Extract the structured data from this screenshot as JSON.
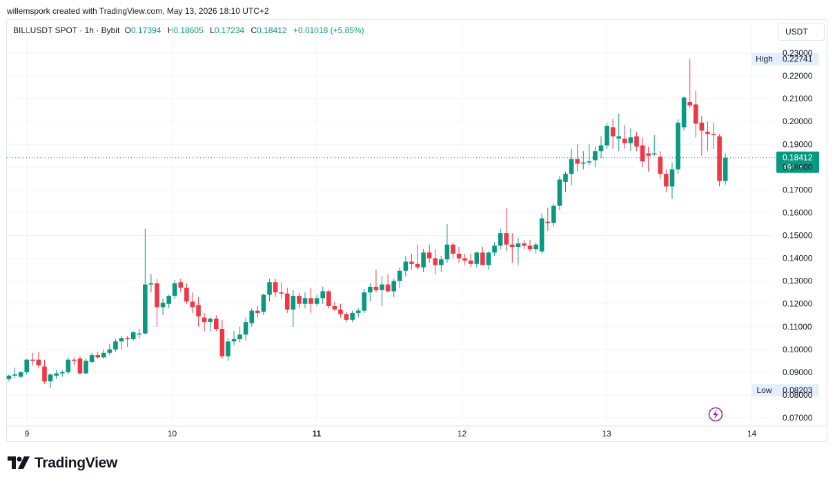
{
  "header": {
    "attribution": "willemspork created with TradingView.com, May 13, 2026 18:10 UTC+2"
  },
  "legend": {
    "symbol": "BILLUSDT SPOT · 1h · Bybit",
    "open_label": "O",
    "open": "0.17394",
    "high_label": "H",
    "high": "0.18605",
    "low_label": "L",
    "low": "0.17234",
    "close_label": "C",
    "close": "0.18412",
    "change": "+0.01018 (+5.85%)"
  },
  "currency_button": {
    "label": "USDT"
  },
  "brand": {
    "name": "TradingView"
  },
  "icons": {
    "logo": "tradingview-logo-icon",
    "alert": "lightning-icon"
  },
  "colors": {
    "up": "#089981",
    "down": "#f23645",
    "text": "#131722",
    "grid": "#f0f3fa",
    "border": "#e0e3eb",
    "label_bg": "#e3effd"
  },
  "chart_data": {
    "type": "candlestick",
    "ylim": [
      0.0665,
      0.2345
    ],
    "y_ticks": [
      "0.07000",
      "0.08000",
      "0.09000",
      "0.10000",
      "0.11000",
      "0.12000",
      "0.13000",
      "0.14000",
      "0.15000",
      "0.16000",
      "0.17000",
      "0.18000",
      "0.19000",
      "0.20000",
      "0.21000",
      "0.22000",
      "0.23000"
    ],
    "x_tick_labels": [
      "9",
      "10",
      "11",
      "12",
      "13",
      "14"
    ],
    "x_tick_bold": [
      "11"
    ],
    "high_marker": {
      "label": "High",
      "value": "0.22741"
    },
    "low_marker": {
      "label": "Low",
      "value": "0.08203"
    },
    "last_price": {
      "value": "0.18412",
      "countdown": "49:36"
    },
    "grid": true,
    "candles": [
      [
        0.087,
        0.089,
        0.086,
        0.0885
      ],
      [
        0.0885,
        0.092,
        0.0875,
        0.089
      ],
      [
        0.088,
        0.0905,
        0.0875,
        0.09
      ],
      [
        0.09,
        0.096,
        0.089,
        0.0955
      ],
      [
        0.0955,
        0.0985,
        0.093,
        0.095
      ],
      [
        0.0955,
        0.099,
        0.092,
        0.093
      ],
      [
        0.0925,
        0.0955,
        0.085,
        0.086
      ],
      [
        0.086,
        0.0895,
        0.083,
        0.089
      ],
      [
        0.0885,
        0.091,
        0.087,
        0.0895
      ],
      [
        0.0895,
        0.091,
        0.088,
        0.09
      ],
      [
        0.09,
        0.0965,
        0.089,
        0.0955
      ],
      [
        0.0955,
        0.0965,
        0.093,
        0.095
      ],
      [
        0.096,
        0.097,
        0.089,
        0.0895
      ],
      [
        0.0895,
        0.096,
        0.089,
        0.095
      ],
      [
        0.0945,
        0.0985,
        0.094,
        0.0975
      ],
      [
        0.0975,
        0.099,
        0.096,
        0.0965
      ],
      [
        0.0965,
        0.1,
        0.096,
        0.0985
      ],
      [
        0.0985,
        0.1025,
        0.0975,
        0.1
      ],
      [
        0.1,
        0.1045,
        0.099,
        0.1035
      ],
      [
        0.1035,
        0.106,
        0.1,
        0.105
      ],
      [
        0.105,
        0.106,
        0.101,
        0.1045
      ],
      [
        0.1045,
        0.108,
        0.104,
        0.1075
      ],
      [
        0.1065,
        0.109,
        0.105,
        0.107
      ],
      [
        0.107,
        0.153,
        0.1065,
        0.1285
      ],
      [
        0.1285,
        0.133,
        0.125,
        0.129
      ],
      [
        0.129,
        0.131,
        0.11,
        0.1185
      ],
      [
        0.1185,
        0.1225,
        0.115,
        0.1205
      ],
      [
        0.12,
        0.124,
        0.118,
        0.1235
      ],
      [
        0.1235,
        0.1305,
        0.122,
        0.129
      ],
      [
        0.1295,
        0.131,
        0.125,
        0.127
      ],
      [
        0.127,
        0.129,
        0.12,
        0.121
      ],
      [
        0.121,
        0.125,
        0.116,
        0.1185
      ],
      [
        0.1195,
        0.123,
        0.11,
        0.1145
      ],
      [
        0.114,
        0.116,
        0.108,
        0.112
      ],
      [
        0.112,
        0.114,
        0.108,
        0.1135
      ],
      [
        0.1135,
        0.115,
        0.108,
        0.109
      ],
      [
        0.109,
        0.113,
        0.096,
        0.097
      ],
      [
        0.097,
        0.105,
        0.095,
        0.1035
      ],
      [
        0.1035,
        0.108,
        0.102,
        0.1045
      ],
      [
        0.1045,
        0.11,
        0.103,
        0.1065
      ],
      [
        0.1065,
        0.114,
        0.104,
        0.112
      ],
      [
        0.1115,
        0.118,
        0.11,
        0.117
      ],
      [
        0.117,
        0.119,
        0.114,
        0.116
      ],
      [
        0.1165,
        0.1245,
        0.115,
        0.124
      ],
      [
        0.124,
        0.131,
        0.121,
        0.1295
      ],
      [
        0.1295,
        0.131,
        0.123,
        0.125
      ],
      [
        0.125,
        0.1295,
        0.122,
        0.1245
      ],
      [
        0.1245,
        0.127,
        0.116,
        0.1175
      ],
      [
        0.1175,
        0.126,
        0.11,
        0.1235
      ],
      [
        0.1235,
        0.125,
        0.118,
        0.12
      ],
      [
        0.12,
        0.125,
        0.118,
        0.1225
      ],
      [
        0.1225,
        0.127,
        0.116,
        0.12
      ],
      [
        0.12,
        0.124,
        0.119,
        0.1225
      ],
      [
        0.1225,
        0.1275,
        0.12,
        0.1255
      ],
      [
        0.1255,
        0.126,
        0.118,
        0.119
      ],
      [
        0.119,
        0.121,
        0.117,
        0.1175
      ],
      [
        0.1175,
        0.12,
        0.114,
        0.1155
      ],
      [
        0.1155,
        0.1165,
        0.112,
        0.113
      ],
      [
        0.113,
        0.117,
        0.112,
        0.116
      ],
      [
        0.116,
        0.118,
        0.114,
        0.117
      ],
      [
        0.117,
        0.1265,
        0.116,
        0.125
      ],
      [
        0.125,
        0.129,
        0.121,
        0.1275
      ],
      [
        0.1275,
        0.135,
        0.125,
        0.126
      ],
      [
        0.126,
        0.132,
        0.119,
        0.1285
      ],
      [
        0.1285,
        0.133,
        0.125,
        0.1255
      ],
      [
        0.1255,
        0.131,
        0.123,
        0.13
      ],
      [
        0.13,
        0.136,
        0.127,
        0.1345
      ],
      [
        0.1345,
        0.141,
        0.132,
        0.1385
      ],
      [
        0.1385,
        0.142,
        0.135,
        0.1375
      ],
      [
        0.1375,
        0.146,
        0.135,
        0.136
      ],
      [
        0.136,
        0.144,
        0.134,
        0.1425
      ],
      [
        0.1425,
        0.146,
        0.138,
        0.14
      ],
      [
        0.14,
        0.144,
        0.133,
        0.137
      ],
      [
        0.137,
        0.141,
        0.134,
        0.1395
      ],
      [
        0.1395,
        0.155,
        0.138,
        0.146
      ],
      [
        0.146,
        0.147,
        0.14,
        0.142
      ],
      [
        0.142,
        0.145,
        0.138,
        0.14
      ],
      [
        0.14,
        0.142,
        0.137,
        0.139
      ],
      [
        0.139,
        0.142,
        0.136,
        0.1375
      ],
      [
        0.1375,
        0.143,
        0.136,
        0.1425
      ],
      [
        0.1425,
        0.145,
        0.138,
        0.137
      ],
      [
        0.137,
        0.143,
        0.135,
        0.1425
      ],
      [
        0.1425,
        0.147,
        0.141,
        0.1455
      ],
      [
        0.1455,
        0.153,
        0.144,
        0.151
      ],
      [
        0.151,
        0.162,
        0.143,
        0.146
      ],
      [
        0.146,
        0.151,
        0.138,
        0.145
      ],
      [
        0.145,
        0.149,
        0.137,
        0.1465
      ],
      [
        0.1465,
        0.148,
        0.144,
        0.1455
      ],
      [
        0.1455,
        0.148,
        0.143,
        0.144
      ],
      [
        0.144,
        0.147,
        0.142,
        0.146
      ],
      [
        0.143,
        0.1595,
        0.142,
        0.1575
      ],
      [
        0.156,
        0.162,
        0.152,
        0.1555
      ],
      [
        0.1555,
        0.164,
        0.154,
        0.163
      ],
      [
        0.163,
        0.176,
        0.161,
        0.1745
      ],
      [
        0.1735,
        0.178,
        0.169,
        0.177
      ],
      [
        0.177,
        0.188,
        0.172,
        0.1835
      ],
      [
        0.1835,
        0.19,
        0.178,
        0.1815
      ],
      [
        0.1815,
        0.187,
        0.179,
        0.182
      ],
      [
        0.182,
        0.19,
        0.181,
        0.1825
      ],
      [
        0.183,
        0.189,
        0.18,
        0.187
      ],
      [
        0.187,
        0.1935,
        0.184,
        0.1895
      ],
      [
        0.1895,
        0.1995,
        0.188,
        0.198
      ],
      [
        0.1975,
        0.201,
        0.188,
        0.1935
      ],
      [
        0.1925,
        0.2035,
        0.187,
        0.1935
      ],
      [
        0.1925,
        0.1985,
        0.188,
        0.1905
      ],
      [
        0.1905,
        0.197,
        0.187,
        0.193
      ],
      [
        0.1935,
        0.1955,
        0.187,
        0.189
      ],
      [
        0.1895,
        0.193,
        0.18,
        0.1825
      ],
      [
        0.186,
        0.189,
        0.178,
        0.185
      ],
      [
        0.1855,
        0.194,
        0.185,
        0.186
      ],
      [
        0.1845,
        0.187,
        0.175,
        0.177
      ],
      [
        0.177,
        0.179,
        0.169,
        0.1715
      ],
      [
        0.1715,
        0.182,
        0.166,
        0.179
      ],
      [
        0.179,
        0.201,
        0.177,
        0.1995
      ],
      [
        0.1975,
        0.211,
        0.196,
        0.2105
      ],
      [
        0.2085,
        0.2274,
        0.206,
        0.207
      ],
      [
        0.2075,
        0.2135,
        0.193,
        0.199
      ],
      [
        0.1995,
        0.2025,
        0.185,
        0.196
      ],
      [
        0.1955,
        0.2,
        0.187,
        0.1945
      ],
      [
        0.1945,
        0.1995,
        0.188,
        0.194
      ],
      [
        0.1935,
        0.1945,
        0.1715,
        0.1739
      ],
      [
        0.1739,
        0.186,
        0.1723,
        0.1841
      ]
    ]
  }
}
